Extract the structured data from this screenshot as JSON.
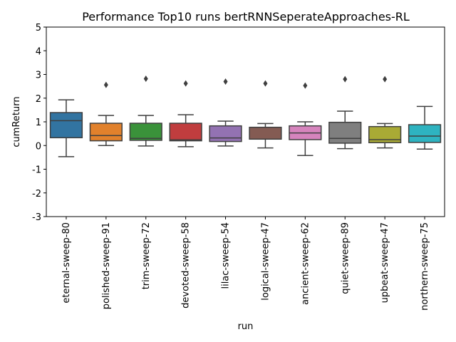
{
  "chart_data": {
    "type": "box",
    "title": "Performance Top10 runs bertRNNSeperateApproaches-RL",
    "xlabel": "run",
    "ylabel": "cumReturn",
    "ylim": [
      -3,
      5
    ],
    "yticks": [
      -3,
      -2,
      -1,
      0,
      1,
      2,
      3,
      4,
      5
    ],
    "grid": false,
    "categories": [
      "eternal-sweep-80",
      "polished-sweep-91",
      "trim-sweep-72",
      "devoted-sweep-58",
      "lilac-sweep-54",
      "logical-sweep-47",
      "ancient-sweep-62",
      "quiet-sweep-89",
      "upbeat-sweep-47",
      "northern-sweep-75"
    ],
    "boxes": [
      {
        "whisker_low": -0.47,
        "q1": 0.33,
        "median": 1.05,
        "q3": 1.39,
        "whisker_high": 1.93,
        "outliers": []
      },
      {
        "whisker_low": 0.0,
        "q1": 0.2,
        "median": 0.42,
        "q3": 0.94,
        "whisker_high": 1.27,
        "outliers": [
          2.56
        ]
      },
      {
        "whisker_low": -0.02,
        "q1": 0.22,
        "median": 0.3,
        "q3": 0.94,
        "whisker_high": 1.27,
        "outliers": [
          2.82
        ]
      },
      {
        "whisker_low": -0.05,
        "q1": 0.2,
        "median": 0.24,
        "q3": 0.94,
        "whisker_high": 1.3,
        "outliers": [
          2.62
        ]
      },
      {
        "whisker_low": -0.02,
        "q1": 0.17,
        "median": 0.32,
        "q3": 0.83,
        "whisker_high": 1.03,
        "outliers": [
          2.7
        ]
      },
      {
        "whisker_low": -0.1,
        "q1": 0.27,
        "median": 0.27,
        "q3": 0.77,
        "whisker_high": 0.93,
        "outliers": [
          2.62
        ]
      },
      {
        "whisker_low": -0.42,
        "q1": 0.25,
        "median": 0.53,
        "q3": 0.83,
        "whisker_high": 1.0,
        "outliers": [
          2.53
        ]
      },
      {
        "whisker_low": -0.13,
        "q1": 0.1,
        "median": 0.3,
        "q3": 0.98,
        "whisker_high": 1.45,
        "outliers": [
          2.8
        ]
      },
      {
        "whisker_low": -0.1,
        "q1": 0.12,
        "median": 0.25,
        "q3": 0.8,
        "whisker_high": 0.93,
        "outliers": [
          2.8
        ]
      },
      {
        "whisker_low": -0.15,
        "q1": 0.13,
        "median": 0.4,
        "q3": 0.88,
        "whisker_high": 1.65,
        "outliers": []
      }
    ],
    "colors": [
      "#3274a1",
      "#e1812c",
      "#3a923a",
      "#c03d3e",
      "#9372b2",
      "#845b53",
      "#d684bd",
      "#7f7f7f",
      "#a9aa35",
      "#2eb3c0"
    ]
  }
}
